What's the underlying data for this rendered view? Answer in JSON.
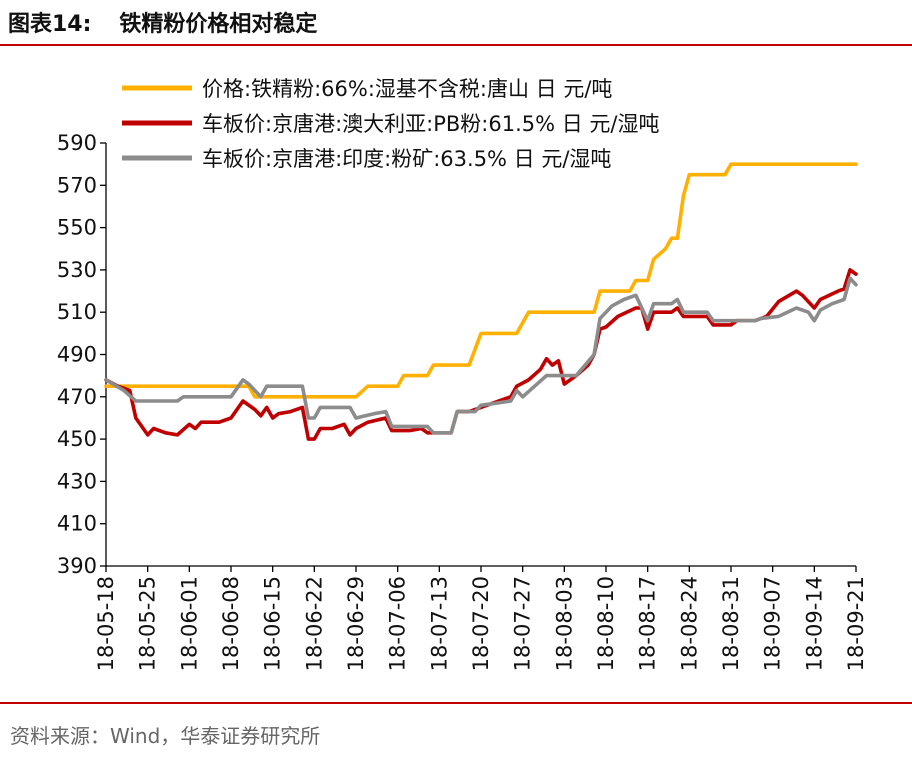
{
  "header": {
    "figure_no": "图表14:",
    "title": "铁精粉价格相对稳定"
  },
  "footer": {
    "source": "资料来源：Wind，华泰证券研究所"
  },
  "chart_data": {
    "type": "line",
    "title": "铁精粉价格相对稳定",
    "xlabel": "",
    "ylabel": "",
    "ylim": [
      390,
      590
    ],
    "yticks": [
      390,
      410,
      430,
      450,
      470,
      490,
      510,
      530,
      550,
      570,
      590
    ],
    "xlim": [
      "2018-05-18",
      "2018-09-21"
    ],
    "xticks": [
      "18-05-18",
      "18-05-25",
      "18-06-01",
      "18-06-08",
      "18-06-15",
      "18-06-22",
      "18-06-29",
      "18-07-06",
      "18-07-13",
      "18-07-20",
      "18-07-27",
      "18-08-03",
      "18-08-10",
      "18-08-17",
      "18-08-24",
      "18-08-31",
      "18-09-07",
      "18-09-14",
      "18-09-21"
    ],
    "grid": false,
    "legend_position": "top-left",
    "series": [
      {
        "name": "价格:铁精粉:66%:湿基不含税:唐山  日  元/吨",
        "color": "#ffb000",
        "points": [
          [
            "2018-05-18",
            475
          ],
          [
            "2018-06-11",
            475
          ],
          [
            "2018-06-12",
            470
          ],
          [
            "2018-06-29",
            470
          ],
          [
            "2018-07-01",
            475
          ],
          [
            "2018-07-06",
            475
          ],
          [
            "2018-07-07",
            480
          ],
          [
            "2018-07-11",
            480
          ],
          [
            "2018-07-12",
            485
          ],
          [
            "2018-07-18",
            485
          ],
          [
            "2018-07-20",
            500
          ],
          [
            "2018-07-26",
            500
          ],
          [
            "2018-07-28",
            510
          ],
          [
            "2018-08-08",
            510
          ],
          [
            "2018-08-09",
            520
          ],
          [
            "2018-08-14",
            520
          ],
          [
            "2018-08-15",
            525
          ],
          [
            "2018-08-17",
            525
          ],
          [
            "2018-08-18",
            535
          ],
          [
            "2018-08-20",
            540
          ],
          [
            "2018-08-21",
            545
          ],
          [
            "2018-08-22",
            545
          ],
          [
            "2018-08-23",
            565
          ],
          [
            "2018-08-24",
            575
          ],
          [
            "2018-08-30",
            575
          ],
          [
            "2018-08-31",
            580
          ],
          [
            "2018-09-21",
            580
          ]
        ]
      },
      {
        "name": "车板价:京唐港:澳大利亚:PB粉:61.5%  日  元/湿吨",
        "color": "#c00000",
        "points": [
          [
            "2018-05-18",
            478
          ],
          [
            "2018-05-20",
            475
          ],
          [
            "2018-05-22",
            473
          ],
          [
            "2018-05-23",
            460
          ],
          [
            "2018-05-25",
            452
          ],
          [
            "2018-05-26",
            455
          ],
          [
            "2018-05-28",
            453
          ],
          [
            "2018-05-30",
            452
          ],
          [
            "2018-06-01",
            457
          ],
          [
            "2018-06-02",
            455
          ],
          [
            "2018-06-03",
            458
          ],
          [
            "2018-06-06",
            458
          ],
          [
            "2018-06-08",
            460
          ],
          [
            "2018-06-10",
            468
          ],
          [
            "2018-06-12",
            464
          ],
          [
            "2018-06-13",
            461
          ],
          [
            "2018-06-14",
            465
          ],
          [
            "2018-06-15",
            460
          ],
          [
            "2018-06-16",
            462
          ],
          [
            "2018-06-18",
            463
          ],
          [
            "2018-06-20",
            465
          ],
          [
            "2018-06-21",
            450
          ],
          [
            "2018-06-22",
            450
          ],
          [
            "2018-06-23",
            455
          ],
          [
            "2018-06-25",
            455
          ],
          [
            "2018-06-27",
            457
          ],
          [
            "2018-06-28",
            452
          ],
          [
            "2018-06-29",
            455
          ],
          [
            "2018-07-01",
            458
          ],
          [
            "2018-07-04",
            460
          ],
          [
            "2018-07-05",
            454
          ],
          [
            "2018-07-08",
            454
          ],
          [
            "2018-07-10",
            455
          ],
          [
            "2018-07-11",
            453
          ],
          [
            "2018-07-15",
            453
          ],
          [
            "2018-07-16",
            463
          ],
          [
            "2018-07-18",
            463
          ],
          [
            "2018-07-20",
            465
          ],
          [
            "2018-07-22",
            467
          ],
          [
            "2018-07-25",
            470
          ],
          [
            "2018-07-26",
            475
          ],
          [
            "2018-07-28",
            478
          ],
          [
            "2018-07-30",
            483
          ],
          [
            "2018-07-31",
            488
          ],
          [
            "2018-08-01",
            485
          ],
          [
            "2018-08-02",
            487
          ],
          [
            "2018-08-03",
            476
          ],
          [
            "2018-08-05",
            480
          ],
          [
            "2018-08-07",
            485
          ],
          [
            "2018-08-08",
            490
          ],
          [
            "2018-08-09",
            502
          ],
          [
            "2018-08-10",
            503
          ],
          [
            "2018-08-12",
            508
          ],
          [
            "2018-08-15",
            512
          ],
          [
            "2018-08-16",
            512
          ],
          [
            "2018-08-17",
            502
          ],
          [
            "2018-08-18",
            510
          ],
          [
            "2018-08-21",
            510
          ],
          [
            "2018-08-22",
            512
          ],
          [
            "2018-08-23",
            508
          ],
          [
            "2018-08-27",
            508
          ],
          [
            "2018-08-28",
            504
          ],
          [
            "2018-08-31",
            504
          ],
          [
            "2018-09-01",
            506
          ],
          [
            "2018-09-04",
            506
          ],
          [
            "2018-09-06",
            508
          ],
          [
            "2018-09-08",
            515
          ],
          [
            "2018-09-11",
            520
          ],
          [
            "2018-09-12",
            518
          ],
          [
            "2018-09-14",
            512
          ],
          [
            "2018-09-15",
            516
          ],
          [
            "2018-09-18",
            520
          ],
          [
            "2018-09-19",
            521
          ],
          [
            "2018-09-20",
            530
          ],
          [
            "2018-09-21",
            528
          ]
        ]
      },
      {
        "name": "车板价:京唐港:印度:粉矿:63.5%  日  元/湿吨",
        "color": "#8c8c8c",
        "points": [
          [
            "2018-05-18",
            478
          ],
          [
            "2018-05-21",
            473
          ],
          [
            "2018-05-23",
            468
          ],
          [
            "2018-05-28",
            468
          ],
          [
            "2018-05-30",
            468
          ],
          [
            "2018-05-31",
            470
          ],
          [
            "2018-06-08",
            470
          ],
          [
            "2018-06-10",
            478
          ],
          [
            "2018-06-11",
            476
          ],
          [
            "2018-06-13",
            470
          ],
          [
            "2018-06-14",
            475
          ],
          [
            "2018-06-20",
            475
          ],
          [
            "2018-06-21",
            460
          ],
          [
            "2018-06-22",
            460
          ],
          [
            "2018-06-23",
            465
          ],
          [
            "2018-06-28",
            465
          ],
          [
            "2018-06-29",
            460
          ],
          [
            "2018-07-02",
            462
          ],
          [
            "2018-07-04",
            463
          ],
          [
            "2018-07-05",
            456
          ],
          [
            "2018-07-11",
            456
          ],
          [
            "2018-07-12",
            453
          ],
          [
            "2018-07-15",
            453
          ],
          [
            "2018-07-16",
            463
          ],
          [
            "2018-07-19",
            463
          ],
          [
            "2018-07-20",
            466
          ],
          [
            "2018-07-25",
            468
          ],
          [
            "2018-07-26",
            473
          ],
          [
            "2018-07-27",
            470
          ],
          [
            "2018-07-29",
            475
          ],
          [
            "2018-07-31",
            480
          ],
          [
            "2018-08-05",
            480
          ],
          [
            "2018-08-08",
            490
          ],
          [
            "2018-08-09",
            507
          ],
          [
            "2018-08-10",
            510
          ],
          [
            "2018-08-11",
            513
          ],
          [
            "2018-08-13",
            516
          ],
          [
            "2018-08-15",
            518
          ],
          [
            "2018-08-17",
            506
          ],
          [
            "2018-08-18",
            514
          ],
          [
            "2018-08-21",
            514
          ],
          [
            "2018-08-22",
            516
          ],
          [
            "2018-08-23",
            510
          ],
          [
            "2018-08-27",
            510
          ],
          [
            "2018-08-28",
            506
          ],
          [
            "2018-09-04",
            506
          ],
          [
            "2018-09-05",
            507
          ],
          [
            "2018-09-08",
            508
          ],
          [
            "2018-09-11",
            512
          ],
          [
            "2018-09-13",
            510
          ],
          [
            "2018-09-14",
            506
          ],
          [
            "2018-09-15",
            511
          ],
          [
            "2018-09-17",
            514
          ],
          [
            "2018-09-19",
            516
          ],
          [
            "2018-09-20",
            526
          ],
          [
            "2018-09-21",
            523
          ]
        ]
      }
    ]
  }
}
